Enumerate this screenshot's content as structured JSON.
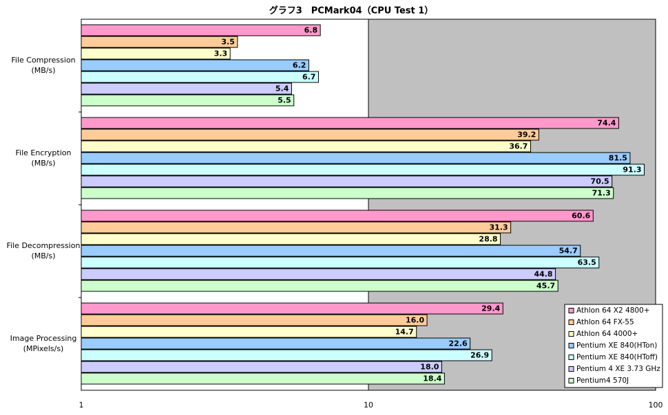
{
  "chart_data": {
    "type": "bar",
    "orientation": "horizontal",
    "title": "グラフ3　PCMark04（CPU Test 1）",
    "categories": [
      "File Compression\n(MB/s)",
      "File Encryption\n(MB/s)",
      "File Decompression\n(MB/s)",
      "Image Processing\n(MPixels/s)"
    ],
    "series": [
      {
        "name": "Athlon 64 X2 4800+",
        "color": "#ff99cc",
        "values": [
          6.8,
          74.4,
          60.6,
          29.4
        ]
      },
      {
        "name": "Athlon 64 FX-55",
        "color": "#ffcc99",
        "values": [
          3.5,
          39.2,
          31.3,
          16.0
        ],
        "value_labels": [
          "3.5",
          "39.2",
          "31.3",
          "16.0"
        ]
      },
      {
        "name": "Athlon 64 4000+",
        "color": "#ffffcc",
        "values": [
          3.3,
          36.7,
          28.8,
          14.7
        ]
      },
      {
        "name": "Pentium XE 840(HTon)",
        "color": "#99ccff",
        "values": [
          6.2,
          81.5,
          54.7,
          22.6
        ]
      },
      {
        "name": "Pentium XE 840(HToff)",
        "color": "#ccffff",
        "values": [
          6.7,
          91.3,
          63.5,
          26.9
        ]
      },
      {
        "name": "Pentium 4 XE 3.73 GHz",
        "color": "#ccccff",
        "values": [
          5.4,
          70.5,
          44.8,
          18.0
        ],
        "value_labels": [
          "5.4",
          "70.5",
          "44.8",
          "18.0"
        ]
      },
      {
        "name": "Pentium4 570J",
        "color": "#ccffcc",
        "values": [
          5.5,
          71.3,
          45.7,
          18.4
        ]
      }
    ],
    "xlim": [
      1,
      100
    ],
    "xticks": [
      1,
      10,
      100
    ],
    "log_scale": true,
    "legend": "bottom-right"
  }
}
